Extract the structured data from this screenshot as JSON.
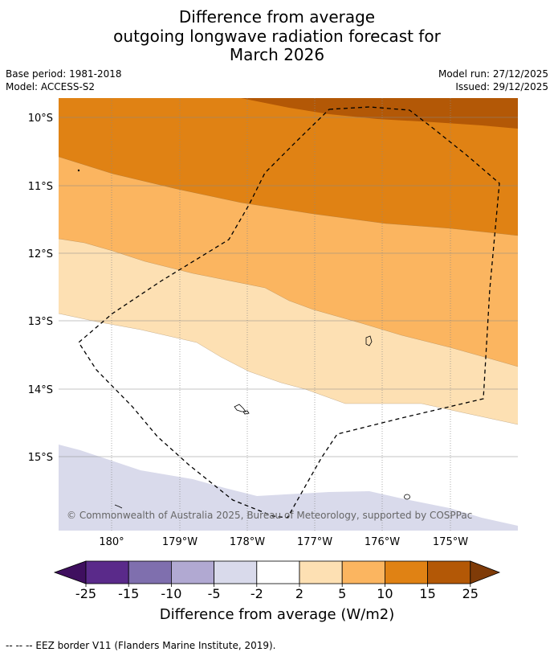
{
  "header": {
    "title_line1": "Difference from average",
    "title_line2": "outgoing longwave radiation forecast for",
    "title_line3": "March 2026",
    "base_period": "Base period: 1981-2018",
    "model": "Model: ACCESS-S2",
    "model_run": "Model run: 27/12/2025",
    "issued": "Issued: 29/12/2025"
  },
  "map": {
    "lat_labels": [
      "10°S",
      "11°S",
      "12°S",
      "13°S",
      "14°S",
      "15°S"
    ],
    "lon_labels": [
      "180°",
      "179°W",
      "178°W",
      "177°W",
      "176°W",
      "175°W"
    ],
    "copyright": "© Commonwealth of Australia 2025, Bureau of Meteorology, supported by COSPPac"
  },
  "colorbar": {
    "tick_labels": [
      "-25",
      "-15",
      "-10",
      "-5",
      "-2",
      "2",
      "5",
      "10",
      "15",
      "25"
    ],
    "colors": [
      "#3f0f5f",
      "#5a2a8a",
      "#7f6fae",
      "#b1a9d2",
      "#d9daeb",
      "#ffffff",
      "#fde0b3",
      "#fbb560",
      "#e08214",
      "#b35806",
      "#7f3b08"
    ],
    "label": "Difference from average (W/m2)"
  },
  "footnote": "-- -- -- EEZ border V11 (Flanders Marine Institute, 2019)."
}
